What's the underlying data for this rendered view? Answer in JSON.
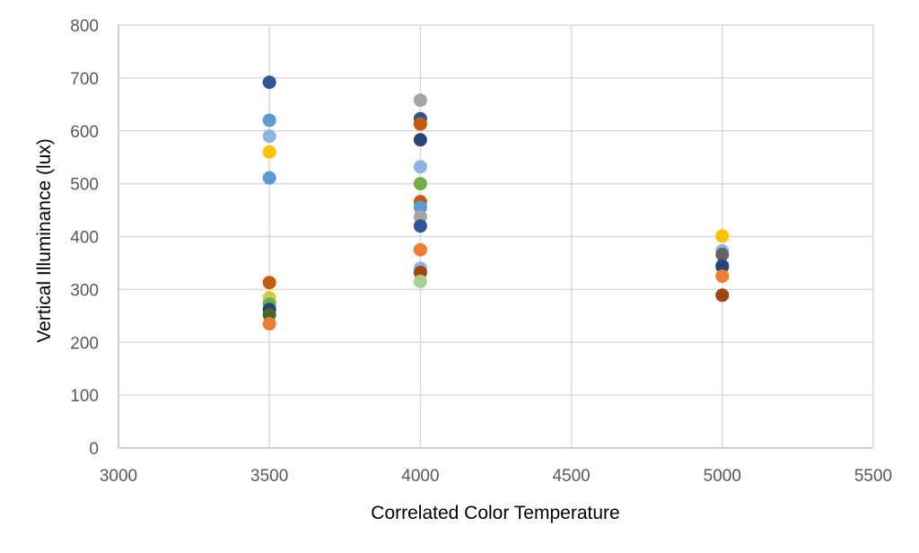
{
  "chart_data": {
    "type": "scatter",
    "title": "",
    "xlabel": "Correlated Color Temperature",
    "ylabel": "Vertical Illuminance (lux)",
    "xlim": [
      3000,
      5500
    ],
    "ylim": [
      0,
      800
    ],
    "x_ticks": [
      3000,
      3500,
      4000,
      4500,
      5000,
      5500
    ],
    "y_ticks": [
      0,
      100,
      200,
      300,
      400,
      500,
      600,
      700,
      800
    ],
    "grid": true,
    "legend": "none",
    "points": [
      {
        "x": 3500,
        "y": 692,
        "color": "#2F5597"
      },
      {
        "x": 3500,
        "y": 620,
        "color": "#5B9BD5"
      },
      {
        "x": 3500,
        "y": 590,
        "color": "#8FB4E3"
      },
      {
        "x": 3500,
        "y": 560,
        "color": "#FFC000"
      },
      {
        "x": 3500,
        "y": 511,
        "color": "#5B9BD5"
      },
      {
        "x": 3500,
        "y": 313,
        "color": "#C55A11"
      },
      {
        "x": 3500,
        "y": 284,
        "color": "#FFC000"
      },
      {
        "x": 3500,
        "y": 278,
        "color": "#A9D18E"
      },
      {
        "x": 3500,
        "y": 272,
        "color": "#70AD47"
      },
      {
        "x": 3500,
        "y": 262,
        "color": "#264478"
      },
      {
        "x": 3500,
        "y": 252,
        "color": "#43682B"
      },
      {
        "x": 3500,
        "y": 235,
        "color": "#ED7D31"
      },
      {
        "x": 4000,
        "y": 658,
        "color": "#A5A5A5"
      },
      {
        "x": 4000,
        "y": 623,
        "color": "#2F5597"
      },
      {
        "x": 4000,
        "y": 613,
        "color": "#C55A11"
      },
      {
        "x": 4000,
        "y": 583,
        "color": "#264478"
      },
      {
        "x": 4000,
        "y": 532,
        "color": "#8FB4E3"
      },
      {
        "x": 4000,
        "y": 500,
        "color": "#70AD47"
      },
      {
        "x": 4000,
        "y": 466,
        "color": "#C55A11"
      },
      {
        "x": 4000,
        "y": 455,
        "color": "#5B9BD5"
      },
      {
        "x": 4000,
        "y": 437,
        "color": "#A5A5A5"
      },
      {
        "x": 4000,
        "y": 420,
        "color": "#2F5597"
      },
      {
        "x": 4000,
        "y": 375,
        "color": "#ED7D31"
      },
      {
        "x": 4000,
        "y": 340,
        "color": "#8FB4E3"
      },
      {
        "x": 4000,
        "y": 332,
        "color": "#9E480E"
      },
      {
        "x": 4000,
        "y": 315,
        "color": "#A9D18E"
      },
      {
        "x": 5000,
        "y": 401,
        "color": "#FFC000"
      },
      {
        "x": 5000,
        "y": 373,
        "color": "#8FB4E3"
      },
      {
        "x": 5000,
        "y": 366,
        "color": "#636363"
      },
      {
        "x": 5000,
        "y": 345,
        "color": "#2F5597"
      },
      {
        "x": 5000,
        "y": 343,
        "color": "#264478"
      },
      {
        "x": 5000,
        "y": 325,
        "color": "#ED7D31"
      },
      {
        "x": 5000,
        "y": 289,
        "color": "#9E480E"
      }
    ]
  }
}
